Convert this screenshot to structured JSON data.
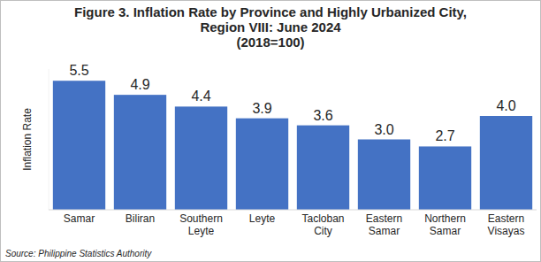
{
  "chart_data": {
    "type": "bar",
    "title": [
      "Figure 3. Inflation Rate by Province and Highly Urbanized City,",
      "Region VIII: June 2024",
      "(2018=100)"
    ],
    "y_label": "Inflation Rate",
    "source": "Source: Philippine Statistics Authority",
    "categories": [
      "Samar",
      "Biliran",
      "Southern Leyte",
      "Leyte",
      "Tacloban City",
      "Eastern Samar",
      "Northern Samar",
      "Eastern Visayas"
    ],
    "values": [
      5.5,
      4.9,
      4.4,
      3.9,
      3.6,
      3.0,
      2.7,
      4.0
    ],
    "value_labels": [
      "5.5",
      "4.9",
      "4.4",
      "3.9",
      "3.6",
      "3.0",
      "2.7",
      "4.0"
    ],
    "color": "#4472c4",
    "ylim": [
      0,
      6
    ],
    "grid": false,
    "data_labels": true,
    "tick_labels": "x"
  }
}
